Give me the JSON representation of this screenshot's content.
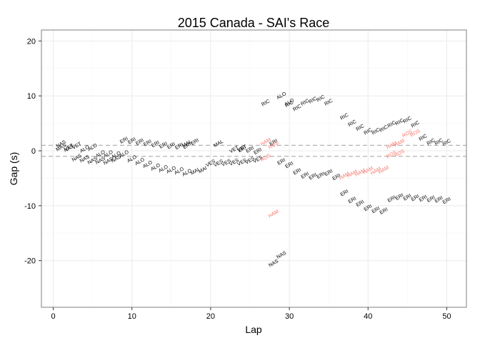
{
  "chart_data": {
    "type": "scatter",
    "title": "2015 Canada - SAI's Race",
    "xlabel": "Lap",
    "ylabel": "Gap (s)",
    "xlim": [
      -1.5,
      52.5
    ],
    "ylim": [
      -28.5,
      22
    ],
    "xticks": [
      0,
      10,
      20,
      30,
      40,
      50
    ],
    "yticks": [
      -20,
      -10,
      0,
      10,
      20
    ],
    "reference_lines": [
      1,
      -1
    ],
    "grid": true,
    "colors": {
      "default": "#000000",
      "highlight": "#f8766d",
      "reference": "#b3b3b3",
      "grid_major": "#ebebeb",
      "grid_minor": "#f5f5f5",
      "panel_border": "#7f7f7f"
    },
    "series": [
      {
        "name": "NAS",
        "points": [
          [
            1,
            1.2
          ],
          [
            2,
            0.4
          ],
          [
            3,
            -1.3
          ],
          [
            4,
            -1.5
          ],
          [
            5,
            -1.8
          ],
          [
            6,
            -1.8
          ],
          [
            7,
            -1.9
          ],
          [
            8,
            -1.5
          ],
          [
            28,
            -20.5
          ],
          [
            29,
            -19
          ]
        ]
      },
      {
        "name": "MAS",
        "points": [
          [
            1,
            0.6
          ]
        ]
      },
      {
        "name": "VET",
        "points": [
          [
            2,
            0.6
          ],
          [
            3,
            0.9
          ],
          [
            23,
            0.2
          ],
          [
            24,
            0.4
          ]
        ]
      },
      {
        "name": "ALO",
        "points": [
          [
            4,
            0.3
          ],
          [
            5,
            0.6
          ],
          [
            6,
            -0.6
          ],
          [
            7,
            -0.6
          ],
          [
            8,
            -0.8
          ],
          [
            9,
            -0.6
          ],
          [
            10,
            -1.5
          ],
          [
            11,
            -2.0
          ],
          [
            12,
            -2.5
          ],
          [
            13,
            -3.0
          ],
          [
            14,
            -3.3
          ],
          [
            15,
            -3.5
          ],
          [
            16,
            -3.7
          ],
          [
            17,
            -4.0
          ],
          [
            29,
            10.0
          ],
          [
            30,
            8.8
          ]
        ]
      },
      {
        "name": "ERI",
        "points": [
          [
            9,
            1.9
          ],
          [
            10,
            1.8
          ],
          [
            11,
            1.6
          ],
          [
            12,
            1.4
          ],
          [
            13,
            1.2
          ],
          [
            14,
            1.0
          ],
          [
            15,
            0.9
          ],
          [
            16,
            0.8
          ],
          [
            17,
            0.9
          ],
          [
            18,
            1.6
          ],
          [
            24,
            0.3
          ],
          [
            25,
            0.2
          ],
          [
            26,
            -0.1
          ],
          [
            28,
            1.5
          ],
          [
            29,
            -2.0
          ],
          [
            30,
            -2.6
          ],
          [
            31,
            -3.8
          ],
          [
            32,
            -4.5
          ],
          [
            33,
            -4.7
          ],
          [
            34,
            -4.5
          ],
          [
            35,
            -4.0
          ],
          [
            36,
            -4.8
          ],
          [
            37,
            -7.7
          ],
          [
            38,
            -9.0
          ],
          [
            39,
            -9.6
          ],
          [
            40,
            -10.4
          ],
          [
            41,
            -10.8
          ],
          [
            42,
            -11.0
          ],
          [
            43,
            -8.8
          ],
          [
            44,
            -8.4
          ],
          [
            45,
            -8.5
          ],
          [
            46,
            -8.6
          ],
          [
            47,
            -8.7
          ],
          [
            48,
            -8.8
          ],
          [
            49,
            -8.9
          ],
          [
            50,
            -9.1
          ]
        ]
      },
      {
        "name": "MAL",
        "points": [
          [
            17,
            1.3
          ],
          [
            21,
            1.3
          ]
        ]
      },
      {
        "name": "MAI",
        "points": [
          [
            18,
            -3.8
          ],
          [
            19,
            -3.5
          ]
        ]
      },
      {
        "name": "VES",
        "points": [
          [
            20,
            -2.3
          ],
          [
            21,
            -2.3
          ],
          [
            22,
            -2.2
          ],
          [
            23,
            -2.1
          ],
          [
            24,
            -2.1
          ],
          [
            25,
            -1.8
          ],
          [
            26,
            -1.6
          ]
        ]
      },
      {
        "name": "RIC",
        "points": [
          [
            27,
            8.7
          ],
          [
            30,
            8.5
          ],
          [
            31,
            7.8
          ],
          [
            32,
            8.8
          ],
          [
            33,
            9.2
          ],
          [
            34,
            9.5
          ],
          [
            35,
            8.8
          ],
          [
            37,
            6.2
          ],
          [
            38,
            5.0
          ],
          [
            39,
            4.2
          ],
          [
            40,
            3.5
          ],
          [
            41,
            3.5
          ],
          [
            42,
            4.0
          ],
          [
            43,
            4.8
          ],
          [
            44,
            5.2
          ],
          [
            45,
            5.6
          ],
          [
            46,
            4.8
          ],
          [
            47,
            2.4
          ],
          [
            48,
            1.6
          ],
          [
            49,
            1.6
          ],
          [
            50,
            1.5
          ]
        ]
      },
      {
        "name": "HAM",
        "highlight": true,
        "points": [
          [
            27,
            1.6
          ],
          [
            28,
            -11.5
          ],
          [
            37,
            -4.6
          ],
          [
            38,
            -4.2
          ],
          [
            39,
            -4.0
          ],
          [
            40,
            -3.6
          ],
          [
            41,
            -3.7
          ],
          [
            42,
            -3.5
          ],
          [
            43,
            1.0
          ],
          [
            44,
            1.4
          ]
        ]
      },
      {
        "name": "ROS",
        "highlight": true,
        "points": [
          [
            27,
            -1.3
          ],
          [
            28,
            1.0
          ],
          [
            43,
            -0.7
          ],
          [
            44,
            -0.5
          ],
          [
            45,
            3.1
          ],
          [
            46,
            3.2
          ]
        ]
      }
    ]
  }
}
